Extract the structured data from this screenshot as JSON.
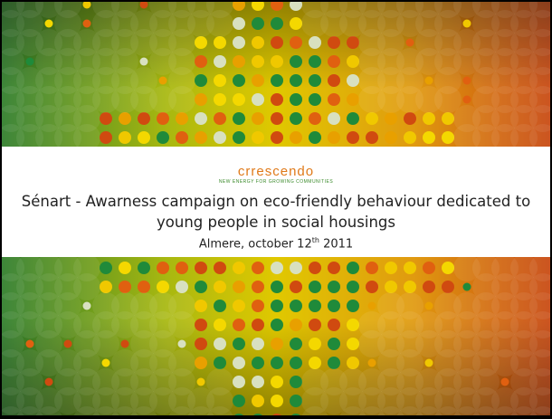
{
  "logo": {
    "name": "crrescendo",
    "tagline": "NEW ENERGY FOR GROWING COMMUNITIES"
  },
  "title": "Sénart - Awarness campaign on eco-friendly behaviour dedicated to young people in social housings",
  "subtitle": {
    "text": "Almere, october 12",
    "superscript": "th",
    "year": " 2011"
  }
}
